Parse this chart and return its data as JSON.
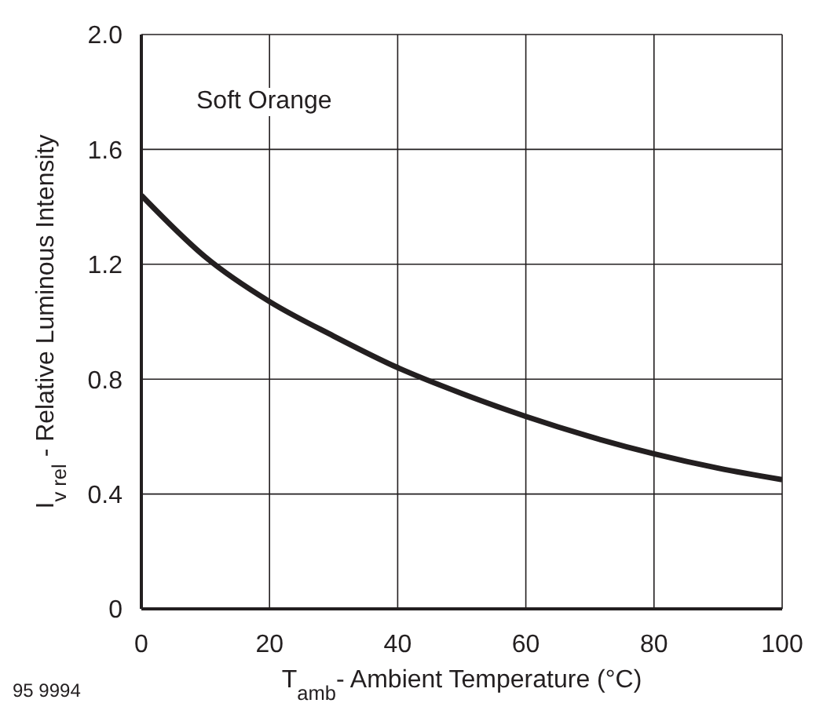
{
  "chart_data": {
    "type": "line",
    "xlabel": "T$_{amb}$- Ambient Temperature (°C)",
    "ylabel": "I$_{v rel}$ - Relative Luminous Intensity",
    "annotations": [
      "Soft Orange",
      "95 9994"
    ],
    "x": [
      0,
      10,
      20,
      30,
      40,
      50,
      60,
      70,
      80,
      90,
      100
    ],
    "series": [
      {
        "color": "#231f20",
        "values": [
          1.44,
          1.225,
          1.07,
          0.95,
          0.84,
          0.75,
          0.67,
          0.6,
          0.54,
          0.49,
          0.45
        ]
      }
    ],
    "xlim": [
      0,
      100
    ],
    "xticks": [
      0,
      20,
      40,
      60,
      80,
      100
    ],
    "ylim": [
      0,
      2.0
    ],
    "yticks": [
      0,
      {
        "value": 0.4,
        "label": "0.4"
      },
      {
        "value": 0.8,
        "label": "0.8"
      },
      {
        "value": 1.2,
        "label": "1.2"
      },
      {
        "value": 1.6,
        "label": "1.6"
      },
      {
        "value": 2.0,
        "label": "2.0"
      }
    ],
    "grid": true,
    "legend": false,
    "marker": "none",
    "line_style": "solid"
  }
}
